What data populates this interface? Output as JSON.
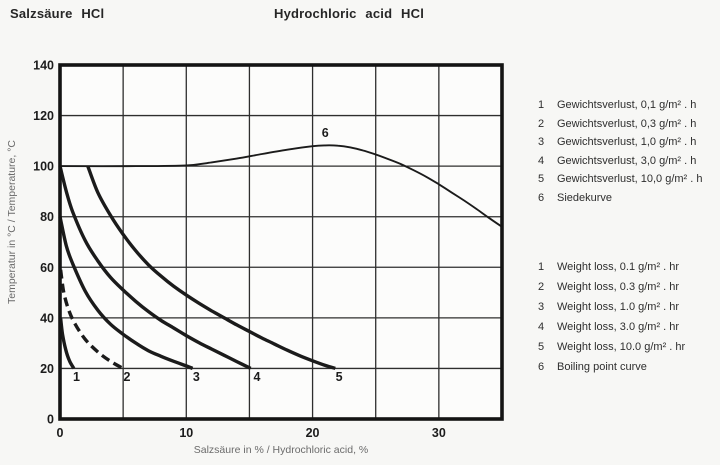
{
  "titles": {
    "de": "Salzsäure HCl",
    "en": "Hydrochloric acid HCl"
  },
  "legend_de": {
    "items": [
      {
        "num": "1",
        "label": "Gewichtsverlust, 0,1 g/m² . h"
      },
      {
        "num": "2",
        "label": "Gewichtsverlust, 0,3 g/m² . h"
      },
      {
        "num": "3",
        "label": "Gewichtsverlust, 1,0 g/m² . h"
      },
      {
        "num": "4",
        "label": "Gewichtsverlust, 3,0 g/m² . h"
      },
      {
        "num": "5",
        "label": "Gewichtsverlust, 10,0 g/m² . h"
      },
      {
        "num": "6",
        "label": "Siedekurve"
      }
    ]
  },
  "legend_en": {
    "items": [
      {
        "num": "1",
        "label": "Weight loss, 0.1 g/m² . hr"
      },
      {
        "num": "2",
        "label": "Weight loss, 0.3 g/m² . hr"
      },
      {
        "num": "3",
        "label": "Weight loss, 1.0 g/m² . hr"
      },
      {
        "num": "4",
        "label": "Weight loss, 3.0 g/m² . hr"
      },
      {
        "num": "5",
        "label": "Weight loss, 10.0 g/m² . hr"
      },
      {
        "num": "6",
        "label": "Boiling point curve"
      }
    ]
  },
  "colors": {
    "page_bg": "#f7f7f5",
    "plot_bg": "#fcfcfb",
    "line": "#1b1b1b",
    "grid": "#2e2e2e",
    "frame": "#141414",
    "tick_text": "#1c1c1c",
    "axis_label_text": "#6b6b6b"
  },
  "chart_data": {
    "type": "line",
    "title": "",
    "xlabel": "Salzsäure in % / Hydrochloric acid, %",
    "ylabel": "Temperatur in °C / Temperature, °C",
    "xlim": [
      0,
      35
    ],
    "ylim": [
      0,
      140
    ],
    "x_ticks": [
      0,
      10,
      20,
      30
    ],
    "y_ticks": [
      0,
      20,
      40,
      60,
      80,
      100,
      120,
      140
    ],
    "grid": {
      "x_step": 5,
      "y_step": 20,
      "on": true
    },
    "legend_position": "outside-right",
    "series": [
      {
        "label": "1",
        "name": "Weight loss 0.1 g/m²·hr",
        "dashed": false,
        "width": 3.4,
        "points": [
          [
            0.05,
            40
          ],
          [
            0.2,
            33.5
          ],
          [
            0.45,
            27.5
          ],
          [
            0.75,
            23
          ],
          [
            1.1,
            20
          ]
        ]
      },
      {
        "label": "2",
        "name": "Weight loss 0.3 g/m²·hr",
        "dashed": true,
        "width": 3.4,
        "points": [
          [
            0.05,
            59
          ],
          [
            0.3,
            50
          ],
          [
            0.7,
            43
          ],
          [
            1.2,
            37.5
          ],
          [
            2,
            31.5
          ],
          [
            3,
            26.5
          ],
          [
            4,
            22.8
          ],
          [
            5,
            20
          ]
        ]
      },
      {
        "label": "3",
        "name": "Weight loss 1.0 g/m²·hr",
        "dashed": false,
        "width": 3.4,
        "points": [
          [
            0,
            80
          ],
          [
            0.5,
            68.5
          ],
          [
            1,
            61.5
          ],
          [
            2,
            50.5
          ],
          [
            3,
            43
          ],
          [
            4,
            37.5
          ],
          [
            5,
            33.5
          ],
          [
            6,
            30
          ],
          [
            7,
            27
          ],
          [
            8,
            24.8
          ],
          [
            9,
            22.8
          ],
          [
            10,
            21
          ],
          [
            10.5,
            20
          ]
        ]
      },
      {
        "label": "4",
        "name": "Weight loss 3.0 g/m²·hr",
        "dashed": false,
        "width": 3.4,
        "points": [
          [
            0,
            100
          ],
          [
            0.5,
            90
          ],
          [
            1,
            82
          ],
          [
            2,
            70.5
          ],
          [
            3,
            62.5
          ],
          [
            4,
            56
          ],
          [
            5,
            51
          ],
          [
            6,
            46.5
          ],
          [
            7,
            42.5
          ],
          [
            8,
            39
          ],
          [
            9,
            36
          ],
          [
            10,
            33
          ],
          [
            11,
            30.2
          ],
          [
            12,
            27.7
          ],
          [
            13,
            25.2
          ],
          [
            14,
            22.7
          ],
          [
            15.1,
            20
          ]
        ]
      },
      {
        "label": "5",
        "name": "Weight loss 10.0 g/m²·hr",
        "dashed": false,
        "width": 3.4,
        "points": [
          [
            2.2,
            100
          ],
          [
            3,
            89.5
          ],
          [
            4,
            80.5
          ],
          [
            5,
            73
          ],
          [
            6,
            66.5
          ],
          [
            7,
            61
          ],
          [
            8,
            56.5
          ],
          [
            9,
            52.5
          ],
          [
            10,
            49
          ],
          [
            11,
            45.8
          ],
          [
            12,
            42.8
          ],
          [
            13,
            40
          ],
          [
            14,
            37.2
          ],
          [
            15,
            34.6
          ],
          [
            16,
            32
          ],
          [
            17,
            29.6
          ],
          [
            18,
            27.2
          ],
          [
            19,
            25
          ],
          [
            20,
            23
          ],
          [
            21,
            21.2
          ],
          [
            21.8,
            20
          ]
        ]
      },
      {
        "label": "6",
        "name": "Boiling point curve",
        "dashed": false,
        "width": 1.9,
        "points": [
          [
            0,
            100
          ],
          [
            6,
            100
          ],
          [
            10,
            100.3
          ],
          [
            12,
            101.5
          ],
          [
            14,
            103
          ],
          [
            16,
            104.8
          ],
          [
            18,
            106.5
          ],
          [
            20,
            107.9
          ],
          [
            21,
            108.2
          ],
          [
            22,
            108.1
          ],
          [
            23,
            107.4
          ],
          [
            24,
            106.2
          ],
          [
            25,
            104.6
          ],
          [
            26,
            102.8
          ],
          [
            27,
            100.8
          ],
          [
            28,
            98.4
          ],
          [
            29,
            95.8
          ],
          [
            30,
            92.8
          ],
          [
            31,
            89.6
          ],
          [
            32,
            86.4
          ],
          [
            33,
            83
          ],
          [
            34,
            79.4
          ],
          [
            35,
            76
          ]
        ]
      }
    ],
    "curve_labels": [
      {
        "text": "1",
        "x": 1.3,
        "y": 15
      },
      {
        "text": "2",
        "x": 5.3,
        "y": 15
      },
      {
        "text": "3",
        "x": 10.8,
        "y": 15
      },
      {
        "text": "4",
        "x": 15.6,
        "y": 15
      },
      {
        "text": "5",
        "x": 22.1,
        "y": 15
      },
      {
        "text": "6",
        "x": 21,
        "y": 111.5
      }
    ]
  }
}
